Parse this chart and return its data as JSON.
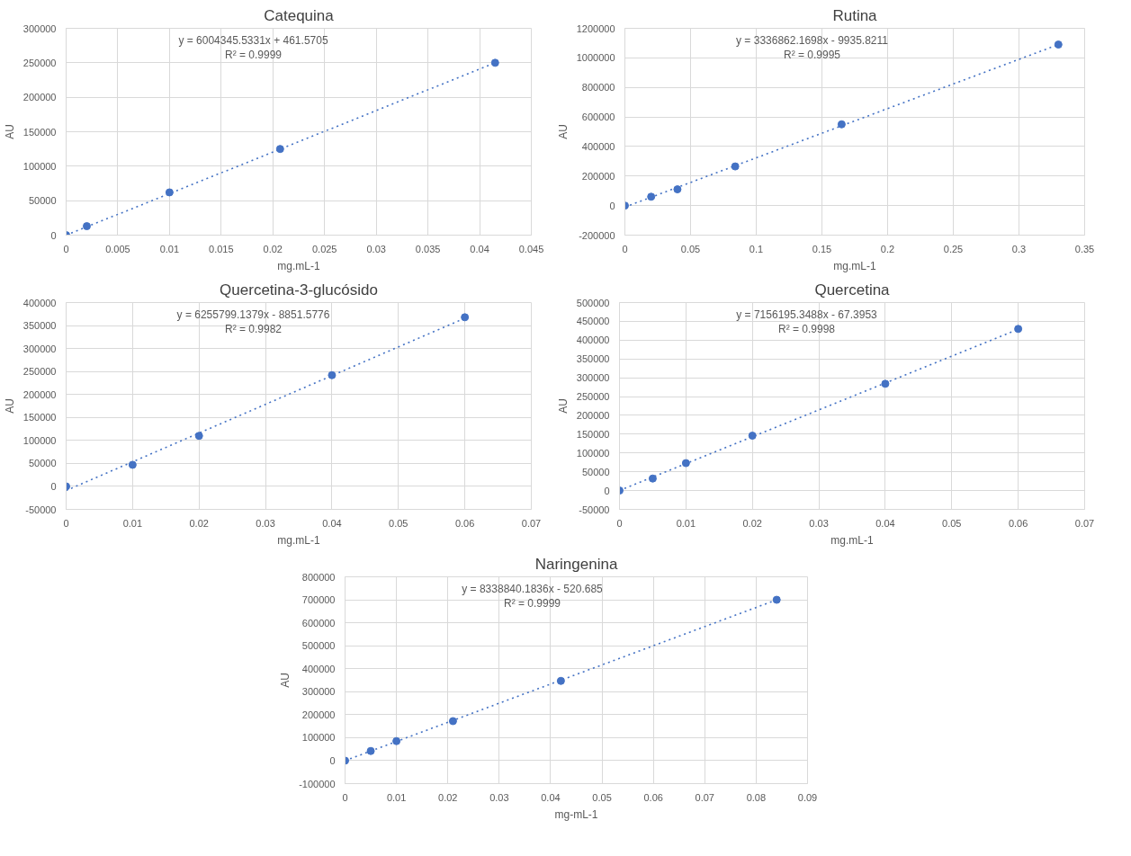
{
  "chart_data": [
    {
      "type": "scatter",
      "title": "Catequina",
      "xlabel": "mg.mL-1",
      "ylabel": "AU",
      "annotations": [
        "y = 6004345.5331x + 461.5705",
        "R² = 0.9999"
      ],
      "xlim": [
        0,
        0.045
      ],
      "xticks": [
        0,
        0.005,
        0.01,
        0.015,
        0.02,
        0.025,
        0.03,
        0.035,
        0.04,
        0.045
      ],
      "ylim": [
        0,
        300000
      ],
      "yticks": [
        0,
        50000,
        100000,
        150000,
        200000,
        250000,
        300000
      ],
      "grid": true,
      "series": [
        {
          "marker": "circle",
          "color": "#4472c4",
          "x": [
            0,
            0.002,
            0.01,
            0.0207,
            0.0415
          ],
          "values": [
            0,
            13000,
            62000,
            125000,
            250000
          ]
        },
        {
          "type": "line",
          "color": "#4472c4",
          "line_style": "dotted",
          "x": [
            0,
            0.0415
          ],
          "values": [
            0,
            250000
          ]
        }
      ]
    },
    {
      "type": "scatter",
      "title": "Rutina",
      "xlabel": "mg.mL-1",
      "ylabel": "AU",
      "annotations": [
        "y = 3336862.1698x - 9935.8211",
        "R² = 0.9995"
      ],
      "xlim": [
        0,
        0.35
      ],
      "xticks": [
        0,
        0.05,
        0.1,
        0.15,
        0.2,
        0.25,
        0.3,
        0.35
      ],
      "ylim": [
        -200000,
        1200000
      ],
      "yticks": [
        -200000,
        0,
        200000,
        400000,
        600000,
        800000,
        1000000,
        1200000
      ],
      "grid": true,
      "series": [
        {
          "marker": "circle",
          "color": "#4472c4",
          "x": [
            0,
            0.02,
            0.04,
            0.084,
            0.165,
            0.33
          ],
          "values": [
            0,
            60000,
            110000,
            265000,
            550000,
            1090000
          ]
        },
        {
          "type": "line",
          "color": "#4472c4",
          "line_style": "dotted",
          "x": [
            0,
            0.33
          ],
          "values": [
            -10000,
            1090000
          ]
        }
      ]
    },
    {
      "type": "scatter",
      "title": "Quercetina-3-glucósido",
      "xlabel": "mg.mL-1",
      "ylabel": "AU",
      "annotations": [
        "y = 6255799.1379x - 8851.5776",
        "R² = 0.9982"
      ],
      "xlim": [
        0,
        0.07
      ],
      "xticks": [
        0,
        0.01,
        0.02,
        0.03,
        0.04,
        0.05,
        0.06,
        0.07
      ],
      "ylim": [
        -50000,
        400000
      ],
      "yticks": [
        -50000,
        0,
        50000,
        100000,
        150000,
        200000,
        250000,
        300000,
        350000,
        400000
      ],
      "grid": true,
      "series": [
        {
          "marker": "circle",
          "color": "#4472c4",
          "x": [
            0,
            0.01,
            0.02,
            0.04,
            0.06
          ],
          "values": [
            0,
            47000,
            110000,
            242000,
            368000
          ]
        },
        {
          "type": "line",
          "color": "#4472c4",
          "line_style": "dotted",
          "x": [
            0,
            0.06
          ],
          "values": [
            -9000,
            366000
          ]
        }
      ]
    },
    {
      "type": "scatter",
      "title": "Quercetina",
      "xlabel": "mg.mL-1",
      "ylabel": "AU",
      "annotations": [
        "y = 7156195.3488x - 67.3953",
        "R² = 0.9998"
      ],
      "xlim": [
        0,
        0.07
      ],
      "xticks": [
        0,
        0.01,
        0.02,
        0.03,
        0.04,
        0.05,
        0.06,
        0.07
      ],
      "ylim": [
        -50000,
        500000
      ],
      "yticks": [
        -50000,
        0,
        50000,
        100000,
        150000,
        200000,
        250000,
        300000,
        350000,
        400000,
        450000,
        500000
      ],
      "grid": true,
      "series": [
        {
          "marker": "circle",
          "color": "#4472c4",
          "x": [
            0,
            0.005,
            0.01,
            0.02,
            0.04,
            0.06
          ],
          "values": [
            0,
            32000,
            73000,
            146000,
            284000,
            430000
          ]
        },
        {
          "type": "line",
          "color": "#4472c4",
          "line_style": "dotted",
          "x": [
            0,
            0.06
          ],
          "values": [
            0,
            429000
          ]
        }
      ]
    },
    {
      "type": "scatter",
      "title": "Naringenina",
      "xlabel": "mg-mL-1",
      "ylabel": "AU",
      "annotations": [
        "y = 8338840.1836x - 520.685",
        "R² = 0.9999"
      ],
      "xlim": [
        0,
        0.09
      ],
      "xticks": [
        0,
        0.01,
        0.02,
        0.03,
        0.04,
        0.05,
        0.06,
        0.07,
        0.08,
        0.09
      ],
      "ylim": [
        -100000,
        800000
      ],
      "yticks": [
        -100000,
        0,
        100000,
        200000,
        300000,
        400000,
        500000,
        600000,
        700000,
        800000
      ],
      "grid": true,
      "series": [
        {
          "marker": "circle",
          "color": "#4472c4",
          "x": [
            0,
            0.005,
            0.01,
            0.021,
            0.042,
            0.084
          ],
          "values": [
            0,
            42000,
            85000,
            172000,
            347000,
            700000
          ]
        },
        {
          "type": "line",
          "color": "#4472c4",
          "line_style": "dotted",
          "x": [
            0,
            0.084
          ],
          "values": [
            0,
            700000
          ]
        }
      ]
    }
  ]
}
